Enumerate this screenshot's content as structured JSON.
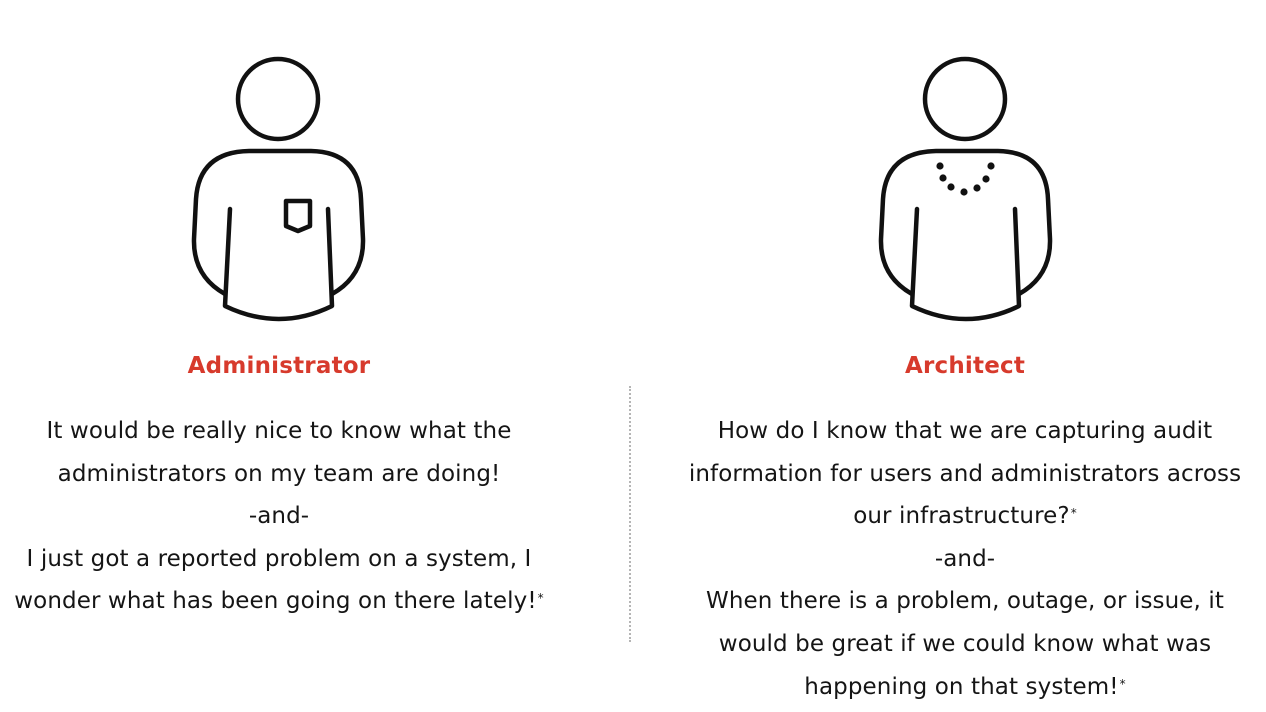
{
  "accent_color": "#d73a2c",
  "text_color": "#151515",
  "personas": [
    {
      "icon": "person-with-pocket-icon",
      "role": "Administrator",
      "quote_lines": [
        "It would be really nice to know what the",
        "administrators on my team are doing!",
        "-and-",
        "I just got a reported problem on a system, I",
        "wonder what has been going on there lately!"
      ],
      "footnote_mark": "*"
    },
    {
      "icon": "person-with-necklace-icon",
      "role": "Architect",
      "quote_lines": [
        "How do I know that we are capturing audit",
        "information for users and administrators across",
        "our infrastructure?",
        "-and-",
        "When there is a problem, outage, or issue, it",
        "would be great if we could know what was",
        "happening on that system!"
      ],
      "footnote_mark": "*"
    }
  ]
}
